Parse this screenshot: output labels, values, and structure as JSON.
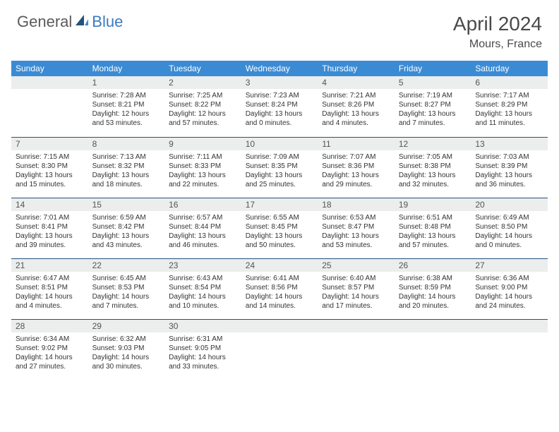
{
  "brand": {
    "part1": "General",
    "part2": "Blue"
  },
  "title": "April 2024",
  "location": "Mours, France",
  "colors": {
    "header_bg": "#3b8bd4",
    "header_text": "#ffffff",
    "daynum_bg": "#eceded",
    "border": "#24527a",
    "brand_gray": "#5a5a5a",
    "brand_blue": "#3b7bbf"
  },
  "weekdays": [
    "Sunday",
    "Monday",
    "Tuesday",
    "Wednesday",
    "Thursday",
    "Friday",
    "Saturday"
  ],
  "weeks": [
    [
      {
        "n": "",
        "sr": "",
        "ss": "",
        "dl": ""
      },
      {
        "n": "1",
        "sr": "Sunrise: 7:28 AM",
        "ss": "Sunset: 8:21 PM",
        "dl": "Daylight: 12 hours and 53 minutes."
      },
      {
        "n": "2",
        "sr": "Sunrise: 7:25 AM",
        "ss": "Sunset: 8:22 PM",
        "dl": "Daylight: 12 hours and 57 minutes."
      },
      {
        "n": "3",
        "sr": "Sunrise: 7:23 AM",
        "ss": "Sunset: 8:24 PM",
        "dl": "Daylight: 13 hours and 0 minutes."
      },
      {
        "n": "4",
        "sr": "Sunrise: 7:21 AM",
        "ss": "Sunset: 8:26 PM",
        "dl": "Daylight: 13 hours and 4 minutes."
      },
      {
        "n": "5",
        "sr": "Sunrise: 7:19 AM",
        "ss": "Sunset: 8:27 PM",
        "dl": "Daylight: 13 hours and 7 minutes."
      },
      {
        "n": "6",
        "sr": "Sunrise: 7:17 AM",
        "ss": "Sunset: 8:29 PM",
        "dl": "Daylight: 13 hours and 11 minutes."
      }
    ],
    [
      {
        "n": "7",
        "sr": "Sunrise: 7:15 AM",
        "ss": "Sunset: 8:30 PM",
        "dl": "Daylight: 13 hours and 15 minutes."
      },
      {
        "n": "8",
        "sr": "Sunrise: 7:13 AM",
        "ss": "Sunset: 8:32 PM",
        "dl": "Daylight: 13 hours and 18 minutes."
      },
      {
        "n": "9",
        "sr": "Sunrise: 7:11 AM",
        "ss": "Sunset: 8:33 PM",
        "dl": "Daylight: 13 hours and 22 minutes."
      },
      {
        "n": "10",
        "sr": "Sunrise: 7:09 AM",
        "ss": "Sunset: 8:35 PM",
        "dl": "Daylight: 13 hours and 25 minutes."
      },
      {
        "n": "11",
        "sr": "Sunrise: 7:07 AM",
        "ss": "Sunset: 8:36 PM",
        "dl": "Daylight: 13 hours and 29 minutes."
      },
      {
        "n": "12",
        "sr": "Sunrise: 7:05 AM",
        "ss": "Sunset: 8:38 PM",
        "dl": "Daylight: 13 hours and 32 minutes."
      },
      {
        "n": "13",
        "sr": "Sunrise: 7:03 AM",
        "ss": "Sunset: 8:39 PM",
        "dl": "Daylight: 13 hours and 36 minutes."
      }
    ],
    [
      {
        "n": "14",
        "sr": "Sunrise: 7:01 AM",
        "ss": "Sunset: 8:41 PM",
        "dl": "Daylight: 13 hours and 39 minutes."
      },
      {
        "n": "15",
        "sr": "Sunrise: 6:59 AM",
        "ss": "Sunset: 8:42 PM",
        "dl": "Daylight: 13 hours and 43 minutes."
      },
      {
        "n": "16",
        "sr": "Sunrise: 6:57 AM",
        "ss": "Sunset: 8:44 PM",
        "dl": "Daylight: 13 hours and 46 minutes."
      },
      {
        "n": "17",
        "sr": "Sunrise: 6:55 AM",
        "ss": "Sunset: 8:45 PM",
        "dl": "Daylight: 13 hours and 50 minutes."
      },
      {
        "n": "18",
        "sr": "Sunrise: 6:53 AM",
        "ss": "Sunset: 8:47 PM",
        "dl": "Daylight: 13 hours and 53 minutes."
      },
      {
        "n": "19",
        "sr": "Sunrise: 6:51 AM",
        "ss": "Sunset: 8:48 PM",
        "dl": "Daylight: 13 hours and 57 minutes."
      },
      {
        "n": "20",
        "sr": "Sunrise: 6:49 AM",
        "ss": "Sunset: 8:50 PM",
        "dl": "Daylight: 14 hours and 0 minutes."
      }
    ],
    [
      {
        "n": "21",
        "sr": "Sunrise: 6:47 AM",
        "ss": "Sunset: 8:51 PM",
        "dl": "Daylight: 14 hours and 4 minutes."
      },
      {
        "n": "22",
        "sr": "Sunrise: 6:45 AM",
        "ss": "Sunset: 8:53 PM",
        "dl": "Daylight: 14 hours and 7 minutes."
      },
      {
        "n": "23",
        "sr": "Sunrise: 6:43 AM",
        "ss": "Sunset: 8:54 PM",
        "dl": "Daylight: 14 hours and 10 minutes."
      },
      {
        "n": "24",
        "sr": "Sunrise: 6:41 AM",
        "ss": "Sunset: 8:56 PM",
        "dl": "Daylight: 14 hours and 14 minutes."
      },
      {
        "n": "25",
        "sr": "Sunrise: 6:40 AM",
        "ss": "Sunset: 8:57 PM",
        "dl": "Daylight: 14 hours and 17 minutes."
      },
      {
        "n": "26",
        "sr": "Sunrise: 6:38 AM",
        "ss": "Sunset: 8:59 PM",
        "dl": "Daylight: 14 hours and 20 minutes."
      },
      {
        "n": "27",
        "sr": "Sunrise: 6:36 AM",
        "ss": "Sunset: 9:00 PM",
        "dl": "Daylight: 14 hours and 24 minutes."
      }
    ],
    [
      {
        "n": "28",
        "sr": "Sunrise: 6:34 AM",
        "ss": "Sunset: 9:02 PM",
        "dl": "Daylight: 14 hours and 27 minutes."
      },
      {
        "n": "29",
        "sr": "Sunrise: 6:32 AM",
        "ss": "Sunset: 9:03 PM",
        "dl": "Daylight: 14 hours and 30 minutes."
      },
      {
        "n": "30",
        "sr": "Sunrise: 6:31 AM",
        "ss": "Sunset: 9:05 PM",
        "dl": "Daylight: 14 hours and 33 minutes."
      },
      {
        "n": "",
        "sr": "",
        "ss": "",
        "dl": ""
      },
      {
        "n": "",
        "sr": "",
        "ss": "",
        "dl": ""
      },
      {
        "n": "",
        "sr": "",
        "ss": "",
        "dl": ""
      },
      {
        "n": "",
        "sr": "",
        "ss": "",
        "dl": ""
      }
    ]
  ]
}
